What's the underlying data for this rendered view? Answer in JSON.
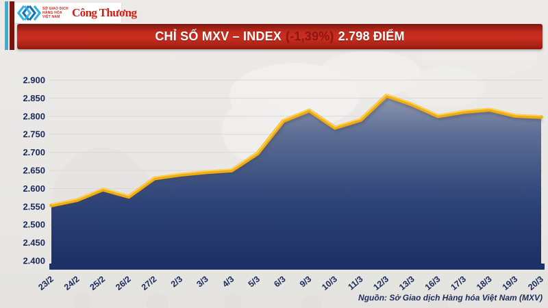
{
  "header": {
    "mxv_logo_lines": [
      "SỞ GIAO DỊCH",
      "HÀNG HÓA",
      "VIỆT NAM"
    ],
    "congthuong_logo": "Công Thương"
  },
  "banner": {
    "title_prefix": "CHỈ SỐ MXV – INDEX",
    "change": "(-1,39%)",
    "title_suffix": "2.798 ĐIỂM"
  },
  "chart_data": {
    "type": "area",
    "title": "Chỉ số MXV-Index",
    "categories": [
      "23/2",
      "24/2",
      "25/2",
      "26/2",
      "27/2",
      "2/3",
      "3/3",
      "4/3",
      "5/3",
      "6/3",
      "9/3",
      "10/3",
      "11/3",
      "12/3",
      "13/3",
      "16/3",
      "17/3",
      "18/3",
      "19/3",
      "20/3"
    ],
    "values": [
      2.553,
      2.568,
      2.597,
      2.577,
      2.628,
      2.638,
      2.645,
      2.65,
      2.697,
      2.787,
      2.816,
      2.768,
      2.79,
      2.857,
      2.832,
      2.8,
      2.812,
      2.818,
      2.801,
      2.798
    ],
    "xlabel": "",
    "ylabel": "",
    "ylim": [
      2.4,
      2.9
    ],
    "ytick_step": 0.05,
    "grid": true,
    "legend": false,
    "line_color": "#f0ac12",
    "line_highlight": "#ffd75e",
    "fill_gradient": [
      "#a6abbb",
      "#5d6e95",
      "#2e4377",
      "#1b2f64"
    ],
    "axis_bar_color": "#1e3168",
    "label_color": "#18285a",
    "gridline_color": "#d9d8d3"
  },
  "footer": {
    "source": "Nguồn: Sở Giao dịch Hàng hóa Việt Nam (MXV)"
  }
}
